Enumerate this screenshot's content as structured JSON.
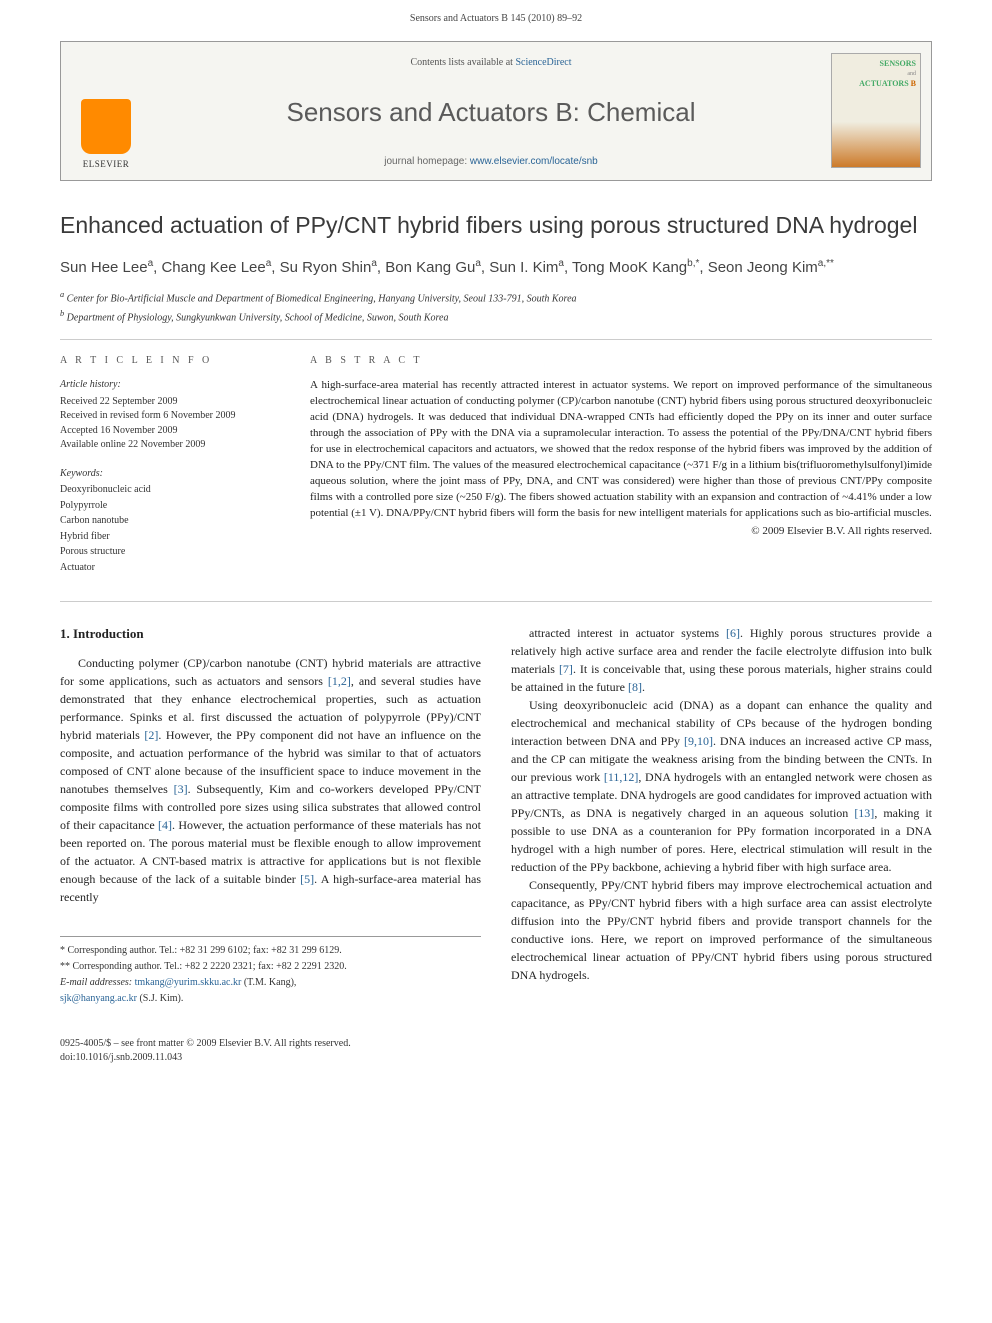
{
  "header": {
    "running_head": "Sensors and Actuators B 145 (2010) 89–92"
  },
  "journal_box": {
    "publisher_name": "ELSEVIER",
    "contents_prefix": "Contents lists available at ",
    "contents_link": "ScienceDirect",
    "journal_title": "Sensors and Actuators B: Chemical",
    "homepage_prefix": "journal homepage: ",
    "homepage_url": "www.elsevier.com/locate/snb",
    "cover_label_1": "SENSORS",
    "cover_label_2": "ACTUATORS",
    "cover_label_3": "B",
    "cover_label_and": "and"
  },
  "article": {
    "title": "Enhanced actuation of PPy/CNT hybrid fibers using porous structured DNA hydrogel",
    "authors_html": "Sun Hee Lee<sup>a</sup>, Chang Kee Lee<sup>a</sup>, Su Ryon Shin<sup>a</sup>, Bon Kang Gu<sup>a</sup>, Sun I. Kim<sup>a</sup>, Tong MooK Kang<sup>b,*</sup>, Seon Jeong Kim<sup>a,**</sup>",
    "affiliations": [
      "a Center for Bio-Artificial Muscle and Department of Biomedical Engineering, Hanyang University, Seoul 133-791, South Korea",
      "b Department of Physiology, Sungkyunkwan University, School of Medicine, Suwon, South Korea"
    ]
  },
  "meta": {
    "info_heading": "A R T I C L E   I N F O",
    "abstract_heading": "A B S T R A C T",
    "history_label": "Article history:",
    "history": [
      "Received 22 September 2009",
      "Received in revised form 6 November 2009",
      "Accepted 16 November 2009",
      "Available online 22 November 2009"
    ],
    "keywords_label": "Keywords:",
    "keywords": [
      "Deoxyribonucleic acid",
      "Polypyrrole",
      "Carbon nanotube",
      "Hybrid fiber",
      "Porous structure",
      "Actuator"
    ],
    "abstract": "A high-surface-area material has recently attracted interest in actuator systems. We report on improved performance of the simultaneous electrochemical linear actuation of conducting polymer (CP)/carbon nanotube (CNT) hybrid fibers using porous structured deoxyribonucleic acid (DNA) hydrogels. It was deduced that individual DNA-wrapped CNTs had efficiently doped the PPy on its inner and outer surface through the association of PPy with the DNA via a supramolecular interaction. To assess the potential of the PPy/DNA/CNT hybrid fibers for use in electrochemical capacitors and actuators, we showed that the redox response of the hybrid fibers was improved by the addition of DNA to the PPy/CNT film. The values of the measured electrochemical capacitance (~371 F/g in a lithium bis(trifluoromethylsulfonyl)imide aqueous solution, where the joint mass of PPy, DNA, and CNT was considered) were higher than those of previous CNT/PPy composite films with a controlled pore size (~250 F/g). The fibers showed actuation stability with an expansion and contraction of ~4.41% under a low potential (±1 V). DNA/PPy/CNT hybrid fibers will form the basis for new intelligent materials for applications such as bio-artificial muscles.",
    "copyright": "© 2009 Elsevier B.V. All rights reserved."
  },
  "body": {
    "section_heading": "1. Introduction",
    "col1_p1": "Conducting polymer (CP)/carbon nanotube (CNT) hybrid materials are attractive for some applications, such as actuators and sensors [1,2], and several studies have demonstrated that they enhance electrochemical properties, such as actuation performance. Spinks et al. first discussed the actuation of polypyrrole (PPy)/CNT hybrid materials [2]. However, the PPy component did not have an influence on the composite, and actuation performance of the hybrid was similar to that of actuators composed of CNT alone because of the insufficient space to induce movement in the nanotubes themselves [3]. Subsequently, Kim and co-workers developed PPy/CNT composite films with controlled pore sizes using silica substrates that allowed control of their capacitance [4]. However, the actuation performance of these materials has not been reported on. The porous material must be flexible enough to allow improvement of the actuator. A CNT-based matrix is attractive for applications but is not flexible enough because of the lack of a suitable binder [5]. A high-surface-area material has recently",
    "col2_p1": "attracted interest in actuator systems [6]. Highly porous structures provide a relatively high active surface area and render the facile electrolyte diffusion into bulk materials [7]. It is conceivable that, using these porous materials, higher strains could be attained in the future [8].",
    "col2_p2": "Using deoxyribonucleic acid (DNA) as a dopant can enhance the quality and electrochemical and mechanical stability of CPs because of the hydrogen bonding interaction between DNA and PPy [9,10]. DNA induces an increased active CP mass, and the CP can mitigate the weakness arising from the binding between the CNTs. In our previous work [11,12], DNA hydrogels with an entangled network were chosen as an attractive template. DNA hydrogels are good candidates for improved actuation with PPy/CNTs, as DNA is negatively charged in an aqueous solution [13], making it possible to use DNA as a counteranion for PPy formation incorporated in a DNA hydrogel with a high number of pores. Here, electrical stimulation will result in the reduction of the PPy backbone, achieving a hybrid fiber with high surface area.",
    "col2_p3": "Consequently, PPy/CNT hybrid fibers may improve electrochemical actuation and capacitance, as PPy/CNT hybrid fibers with a high surface area can assist electrolyte diffusion into the PPy/CNT hybrid fibers and provide transport channels for the conductive ions. Here, we report on improved performance of the simultaneous electrochemical linear actuation of PPy/CNT hybrid fibers using porous structured DNA hydrogels."
  },
  "footnotes": {
    "corr1": "* Corresponding author. Tel.: +82 31 299 6102; fax: +82 31 299 6129.",
    "corr2": "** Corresponding author. Tel.: +82 2 2220 2321; fax: +82 2 2291 2320.",
    "email_label": "E-mail addresses: ",
    "email1": "tmkang@yurim.skku.ac.kr",
    "email1_name": " (T.M. Kang),",
    "email2": "sjk@hanyang.ac.kr",
    "email2_name": " (S.J. Kim)."
  },
  "footer": {
    "line1": "0925-4005/$ – see front matter © 2009 Elsevier B.V. All rights reserved.",
    "doi": "doi:10.1016/j.snb.2009.11.043"
  },
  "colors": {
    "link": "#2a6496",
    "text": "#222222",
    "rule": "#cccccc",
    "logo": "#ff8a00"
  }
}
